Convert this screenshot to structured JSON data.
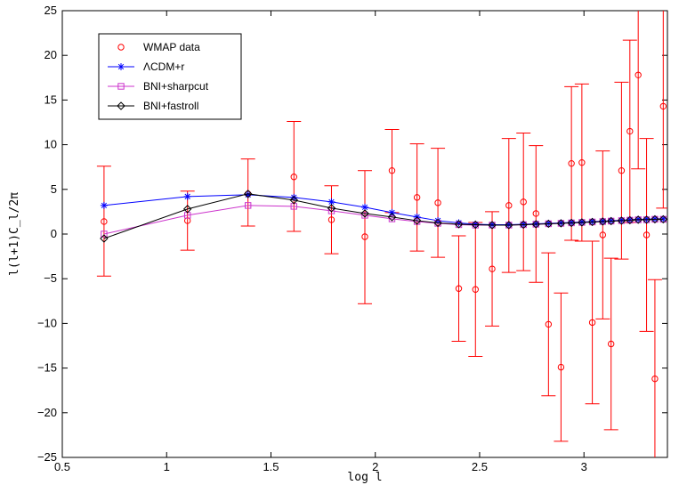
{
  "chart_data": {
    "type": "line",
    "title": "",
    "xlabel": "log l",
    "ylabel": "l(l+1)C_l/2π",
    "xlim": [
      0.5,
      3.4
    ],
    "ylim": [
      -25,
      25
    ],
    "xticks": [
      0.5,
      1,
      1.5,
      2,
      2.5,
      3
    ],
    "xtick_labels": [
      "0.5",
      "1",
      "1.5",
      "2",
      "2.5",
      "3"
    ],
    "yticks": [
      -25,
      -20,
      -15,
      -10,
      -5,
      0,
      5,
      10,
      15,
      20,
      25
    ],
    "ytick_labels": [
      "−25",
      "−20",
      "−15",
      "−10",
      "−5",
      "0",
      "5",
      "10",
      "15",
      "20",
      "25"
    ],
    "grid": false,
    "legend_position": "top-left",
    "series": [
      {
        "name": "WMAP data",
        "kind": "errorbar",
        "color": "#ff0000",
        "marker": "circle",
        "x": [
          0.7,
          1.1,
          1.39,
          1.61,
          1.79,
          1.95,
          2.08,
          2.2,
          2.3,
          2.4,
          2.48,
          2.56,
          2.64,
          2.71,
          2.77,
          2.83,
          2.89,
          2.94,
          2.99,
          3.04,
          3.09,
          3.13,
          3.18,
          3.22,
          3.26,
          3.3,
          3.34,
          3.38
        ],
        "y": [
          1.4,
          1.5,
          4.5,
          6.4,
          1.6,
          -0.3,
          7.1,
          4.1,
          3.5,
          -6.1,
          -6.2,
          -3.9,
          3.2,
          3.6,
          2.3,
          -10.1,
          -14.9,
          7.9,
          8.0,
          -9.9,
          -0.1,
          -12.3,
          7.1,
          11.5,
          17.8,
          -0.1,
          -16.2,
          14.3
        ],
        "yerr_low": [
          6.1,
          3.3,
          3.6,
          6.1,
          3.8,
          7.5,
          4.7,
          6.0,
          6.1,
          5.9,
          7.5,
          6.4,
          7.5,
          7.7,
          7.7,
          8.0,
          8.3,
          8.6,
          8.8,
          9.1,
          9.4,
          9.6,
          9.9,
          10.2,
          10.5,
          10.8,
          11.1,
          11.4
        ],
        "yerr_high": [
          6.2,
          3.3,
          3.9,
          6.2,
          3.8,
          7.4,
          4.6,
          6.0,
          6.1,
          5.9,
          7.5,
          6.4,
          7.5,
          7.7,
          7.6,
          8.0,
          8.3,
          8.6,
          8.8,
          9.1,
          9.4,
          9.6,
          9.9,
          10.2,
          10.5,
          10.8,
          11.1,
          11.4
        ]
      },
      {
        "name": "ΛCDM+r",
        "kind": "line",
        "color": "#0000ff",
        "marker": "star",
        "x": [
          0.7,
          1.1,
          1.39,
          1.61,
          1.79,
          1.95,
          2.08,
          2.2,
          2.3,
          2.4,
          2.48,
          2.56,
          2.64,
          2.71,
          2.77,
          2.83,
          2.89,
          2.94,
          2.99,
          3.04,
          3.09,
          3.13,
          3.18,
          3.22,
          3.26,
          3.3,
          3.34,
          3.38
        ],
        "y": [
          3.2,
          4.2,
          4.4,
          4.1,
          3.6,
          3.0,
          2.4,
          1.9,
          1.5,
          1.25,
          1.1,
          1.05,
          1.05,
          1.1,
          1.15,
          1.2,
          1.25,
          1.3,
          1.35,
          1.4,
          1.45,
          1.5,
          1.55,
          1.6,
          1.65,
          1.65,
          1.7,
          1.7
        ]
      },
      {
        "name": "BNI+sharpcut",
        "kind": "line",
        "color": "#cc33cc",
        "marker": "square",
        "x": [
          0.7,
          1.1,
          1.39,
          1.61,
          1.79,
          1.95,
          2.08,
          2.2,
          2.3,
          2.4,
          2.48,
          2.56,
          2.64,
          2.71,
          2.77,
          2.83,
          2.89,
          2.94,
          2.99,
          3.04,
          3.09,
          3.13,
          3.18,
          3.22,
          3.26,
          3.3,
          3.34,
          3.38
        ],
        "y": [
          0.0,
          2.1,
          3.2,
          3.1,
          2.6,
          2.1,
          1.7,
          1.4,
          1.2,
          1.05,
          1.0,
          1.0,
          1.0,
          1.05,
          1.1,
          1.15,
          1.2,
          1.25,
          1.3,
          1.35,
          1.4,
          1.45,
          1.5,
          1.55,
          1.6,
          1.6,
          1.65,
          1.65
        ]
      },
      {
        "name": "BNI+fastroll",
        "kind": "line",
        "color": "#000000",
        "marker": "diamond",
        "x": [
          0.7,
          1.1,
          1.39,
          1.61,
          1.79,
          1.95,
          2.08,
          2.2,
          2.3,
          2.4,
          2.48,
          2.56,
          2.64,
          2.71,
          2.77,
          2.83,
          2.89,
          2.94,
          2.99,
          3.04,
          3.09,
          3.13,
          3.18,
          3.22,
          3.26,
          3.3,
          3.34,
          3.38
        ],
        "y": [
          -0.5,
          2.8,
          4.5,
          3.8,
          2.9,
          2.3,
          1.9,
          1.5,
          1.25,
          1.1,
          1.05,
          1.0,
          1.0,
          1.05,
          1.1,
          1.15,
          1.2,
          1.25,
          1.3,
          1.35,
          1.4,
          1.45,
          1.5,
          1.55,
          1.6,
          1.6,
          1.65,
          1.65
        ]
      }
    ]
  }
}
